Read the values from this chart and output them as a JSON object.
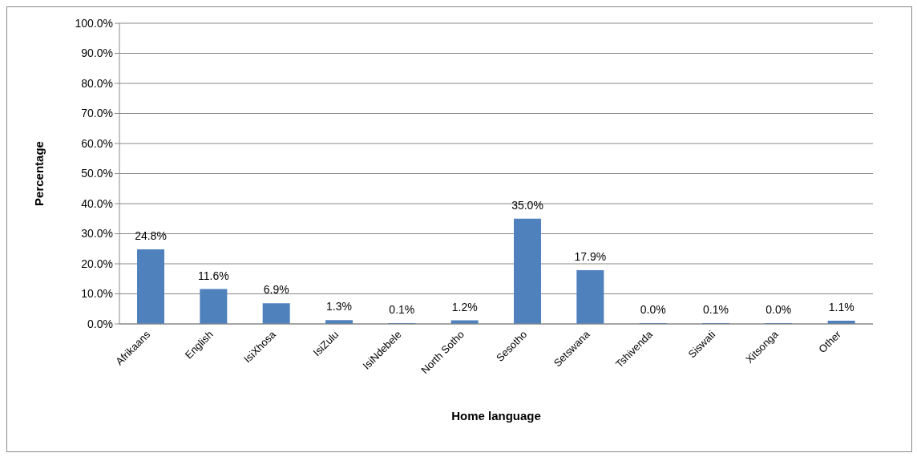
{
  "chart_data": {
    "type": "bar",
    "xlabel": "Home language",
    "ylabel": "Percentage",
    "categories": [
      "Afrikaans",
      "English",
      "IsiXhosa",
      "IsiZulu",
      "IsiNdebele",
      "North Sotho",
      "Sesotho",
      "Setswana",
      "Tshivenda",
      "Siswati",
      "Xitsonga",
      "Other"
    ],
    "values": [
      24.8,
      11.6,
      6.9,
      1.3,
      0.1,
      1.2,
      35.0,
      17.9,
      0.0,
      0.1,
      0.0,
      1.1
    ],
    "value_labels": [
      "24.8%",
      "11.6%",
      "6.9%",
      "1.3%",
      "0.1%",
      "1.2%",
      "35.0%",
      "17.9%",
      "0.0%",
      "0.1%",
      "0.0%",
      "1.1%"
    ],
    "color": "#4f81bd",
    "ylim": [
      0,
      100
    ],
    "yticks": [
      {
        "value": 0,
        "label": "0.0%"
      },
      {
        "value": 10,
        "label": "10.0%"
      },
      {
        "value": 20,
        "label": "20.0%"
      },
      {
        "value": 30,
        "label": "30.0%"
      },
      {
        "value": 40,
        "label": "40.0%"
      },
      {
        "value": 50,
        "label": "50.0%"
      },
      {
        "value": 60,
        "label": "60.0%"
      },
      {
        "value": 70,
        "label": "70.0%"
      },
      {
        "value": 80,
        "label": "80.0%"
      },
      {
        "value": 90,
        "label": "90.0%"
      },
      {
        "value": 100,
        "label": "100.0%"
      }
    ],
    "grid": "y"
  }
}
